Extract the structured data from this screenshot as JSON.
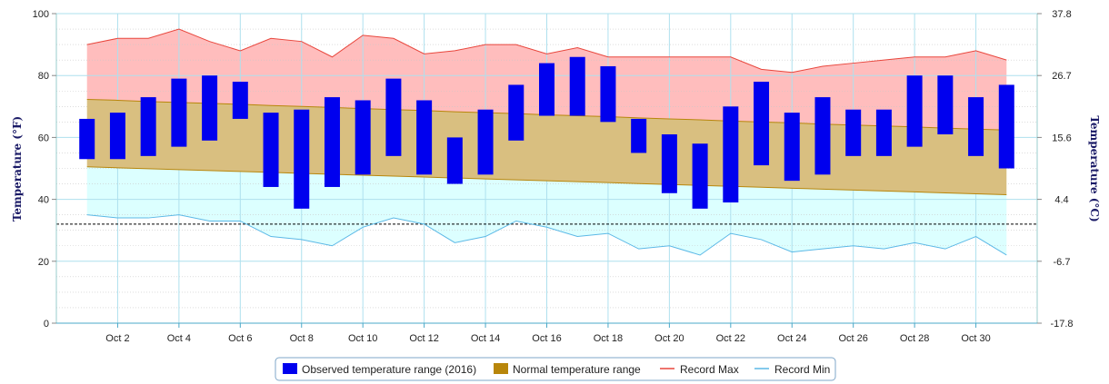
{
  "chart_data": {
    "type": "bar",
    "title": "",
    "xlabel": "",
    "ylabel": "Temperature (°F)",
    "ylabel_right": "Temperature (°C)",
    "ylim": [
      0,
      100
    ],
    "ylim_right": [
      -17.8,
      37.8
    ],
    "y_ticks": [
      0,
      20,
      40,
      60,
      80,
      100
    ],
    "y_ticks_right": [
      "-17.8",
      "-6.7",
      "4.4",
      "15.6",
      "26.7",
      "37.8"
    ],
    "x": [
      1,
      2,
      3,
      4,
      5,
      6,
      7,
      8,
      9,
      10,
      11,
      12,
      13,
      14,
      15,
      16,
      17,
      18,
      19,
      20,
      21,
      22,
      23,
      24,
      25,
      26,
      27,
      28,
      29,
      30,
      31
    ],
    "x_ticks": [
      2,
      4,
      6,
      8,
      10,
      12,
      14,
      16,
      18,
      20,
      22,
      24,
      26,
      28,
      30
    ],
    "x_tick_labels": [
      "Oct 2",
      "Oct 4",
      "Oct 6",
      "Oct 8",
      "Oct 10",
      "Oct 12",
      "Oct 14",
      "Oct 16",
      "Oct 18",
      "Oct 20",
      "Oct 22",
      "Oct 24",
      "Oct 26",
      "Oct 28",
      "Oct 30"
    ],
    "freezing_line": 32,
    "grid": true,
    "legend_position": "bottom-center",
    "series": [
      {
        "name": "Observed temperature range (2016)",
        "kind": "floating-bar",
        "color": "#0000ee",
        "low": [
          53,
          53,
          54,
          57,
          59,
          66,
          44,
          37,
          44,
          48,
          54,
          48,
          45,
          48,
          59,
          67,
          67,
          65,
          55,
          42,
          37,
          39,
          51,
          46,
          48,
          54,
          54,
          57,
          61,
          54,
          50
        ],
        "high": [
          66,
          68,
          73,
          79,
          80,
          78,
          68,
          69,
          73,
          72,
          79,
          72,
          60,
          69,
          77,
          84,
          86,
          83,
          66,
          61,
          58,
          70,
          78,
          68,
          73,
          69,
          69,
          80,
          80,
          73,
          77
        ]
      },
      {
        "name": "Normal temperature range",
        "kind": "band",
        "color": "#b8860b",
        "low": [
          50.5,
          50.2,
          49.9,
          49.6,
          49.3,
          49.0,
          48.7,
          48.4,
          48.1,
          47.8,
          47.5,
          47.2,
          46.9,
          46.6,
          46.3,
          46.0,
          45.7,
          45.4,
          45.1,
          44.8,
          44.5,
          44.2,
          43.9,
          43.6,
          43.3,
          43.0,
          42.7,
          42.4,
          42.1,
          41.8,
          41.5
        ],
        "high": [
          72.3,
          72.0,
          71.6,
          71.3,
          71.0,
          70.7,
          70.3,
          70.0,
          69.7,
          69.3,
          69.0,
          68.7,
          68.3,
          68.0,
          67.7,
          67.3,
          67.0,
          66.7,
          66.3,
          66.0,
          65.7,
          65.3,
          65.0,
          64.7,
          64.3,
          64.0,
          63.7,
          63.4,
          63.0,
          62.7,
          62.4
        ]
      },
      {
        "name": "Record Max",
        "kind": "line",
        "color": "#e8463c",
        "fill": "#ffbdbd",
        "values": [
          90,
          92,
          92,
          95,
          91,
          88,
          92,
          91,
          86,
          93,
          92,
          87,
          88,
          90,
          90,
          87,
          89,
          86,
          86,
          86,
          86,
          86,
          82,
          81,
          83,
          84,
          85,
          86,
          86,
          88,
          85
        ]
      },
      {
        "name": "Record Min",
        "kind": "line",
        "color": "#5bb8e6",
        "fill": "#dcffff",
        "values": [
          35,
          34,
          34,
          35,
          33,
          33,
          28,
          27,
          25,
          31,
          34,
          32,
          26,
          28,
          33,
          31,
          28,
          29,
          24,
          25,
          22,
          29,
          27,
          23,
          24,
          25,
          24,
          26,
          24,
          28,
          22
        ]
      }
    ]
  }
}
